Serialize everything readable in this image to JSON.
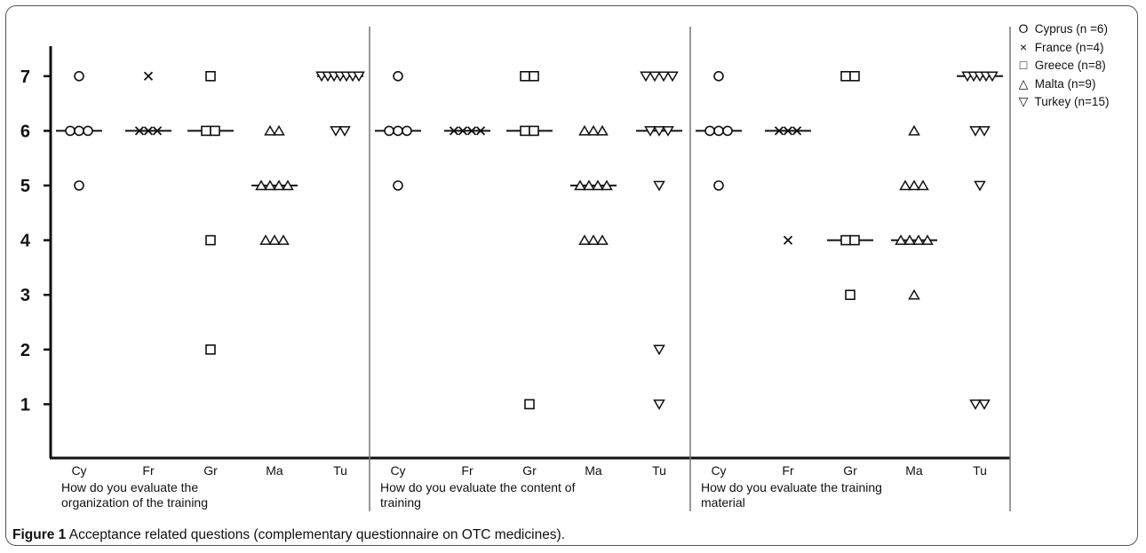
{
  "caption": {
    "label": "Figure 1",
    "text": "Acceptance related questions (complementary questionnaire on OTC medicines)."
  },
  "legend": [
    {
      "symbol": "circle",
      "glyph": "O",
      "name": "Cyprus",
      "n": "(n =6)"
    },
    {
      "symbol": "cross",
      "glyph": "×",
      "name": "France",
      "n": "(n=4)"
    },
    {
      "symbol": "square",
      "glyph": "□",
      "name": "Greece",
      "n": "(n=8)"
    },
    {
      "symbol": "triangle-up",
      "glyph": "△",
      "name": "Malta",
      "n": "(n=9)"
    },
    {
      "symbol": "triangle-down",
      "glyph": "▽",
      "name": "Turkey",
      "n": "(n=15)"
    }
  ],
  "chart_data": {
    "type": "scatter",
    "subtype": "dot-plot with median lines",
    "ylim": [
      0,
      7
    ],
    "yticks": [
      "1",
      "2",
      "3",
      "4",
      "5",
      "6",
      "7"
    ],
    "categories": [
      "Cy",
      "Fr",
      "Gr",
      "Ma",
      "Tu"
    ],
    "marker_by_category": {
      "Cy": "circle",
      "Fr": "cross",
      "Gr": "square",
      "Ma": "triangle-up",
      "Tu": "triangle-down"
    },
    "panels": [
      {
        "label_lines": [
          "How do you evaluate the",
          "organization of the training"
        ],
        "groups": {
          "Cy": {
            "points": [
              {
                "value": 7,
                "count": 1
              },
              {
                "value": 6,
                "count": 3
              },
              {
                "value": 5,
                "count": 1
              }
            ],
            "median": 6
          },
          "Fr": {
            "points": [
              {
                "value": 7,
                "count": 1
              },
              {
                "value": 6,
                "count": 3
              }
            ],
            "median": 6
          },
          "Gr": {
            "points": [
              {
                "value": 7,
                "count": 1
              },
              {
                "value": 6,
                "count": 2
              },
              {
                "value": 4,
                "count": 1
              },
              {
                "value": 2,
                "count": 1
              }
            ],
            "median": 6
          },
          "Ma": {
            "points": [
              {
                "value": 6,
                "count": 2
              },
              {
                "value": 5,
                "count": 4
              },
              {
                "value": 4,
                "count": 3
              }
            ],
            "median": 5
          },
          "Tu": {
            "points": [
              {
                "value": 7,
                "count": 7
              },
              {
                "value": 6,
                "count": 2
              }
            ],
            "median": 7
          }
        }
      },
      {
        "label_lines": [
          "How do you evaluate the content of",
          "training"
        ],
        "groups": {
          "Cy": {
            "points": [
              {
                "value": 7,
                "count": 1
              },
              {
                "value": 6,
                "count": 3
              },
              {
                "value": 5,
                "count": 1
              }
            ],
            "median": 6
          },
          "Fr": {
            "points": [
              {
                "value": 6,
                "count": 4
              }
            ],
            "median": 6
          },
          "Gr": {
            "points": [
              {
                "value": 7,
                "count": 2
              },
              {
                "value": 6,
                "count": 2
              },
              {
                "value": 1,
                "count": 1
              }
            ],
            "median": 6
          },
          "Ma": {
            "points": [
              {
                "value": 6,
                "count": 3
              },
              {
                "value": 5,
                "count": 4
              },
              {
                "value": 4,
                "count": 3
              }
            ],
            "median": 5
          },
          "Tu": {
            "points": [
              {
                "value": 7,
                "count": 4
              },
              {
                "value": 6,
                "count": 3
              },
              {
                "value": 5,
                "count": 1
              },
              {
                "value": 2,
                "count": 1
              },
              {
                "value": 1,
                "count": 1
              }
            ],
            "median": 6
          }
        }
      },
      {
        "label_lines": [
          "How do you evaluate the training",
          "material"
        ],
        "groups": {
          "Cy": {
            "points": [
              {
                "value": 7,
                "count": 1
              },
              {
                "value": 6,
                "count": 3
              },
              {
                "value": 5,
                "count": 1
              }
            ],
            "median": 6
          },
          "Fr": {
            "points": [
              {
                "value": 6,
                "count": 3
              },
              {
                "value": 4,
                "count": 1
              }
            ],
            "median": 6
          },
          "Gr": {
            "points": [
              {
                "value": 7,
                "count": 2
              },
              {
                "value": 4,
                "count": 2
              },
              {
                "value": 3,
                "count": 1
              }
            ],
            "median": 4
          },
          "Ma": {
            "points": [
              {
                "value": 6,
                "count": 1
              },
              {
                "value": 5,
                "count": 3
              },
              {
                "value": 4,
                "count": 4
              },
              {
                "value": 3,
                "count": 1
              }
            ],
            "median": 4
          },
          "Tu": {
            "points": [
              {
                "value": 7,
                "count": 5
              },
              {
                "value": 6,
                "count": 2
              },
              {
                "value": 5,
                "count": 1
              },
              {
                "value": 1,
                "count": 2
              }
            ],
            "median": 7
          }
        }
      }
    ]
  }
}
